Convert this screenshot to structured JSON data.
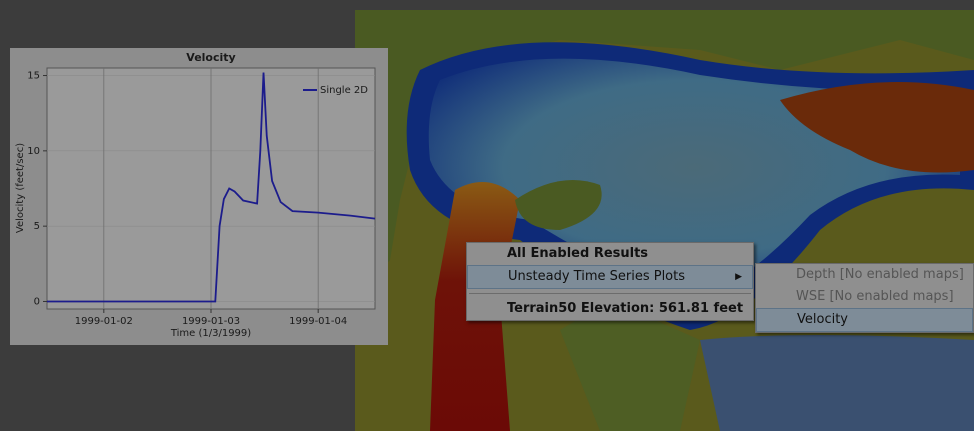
{
  "chart_data": {
    "type": "line",
    "title": "Velocity",
    "x_label": "Time (1/3/1999)",
    "y_label": "Velocity (feet/sec)",
    "x": [
      1.47,
      3.04,
      3.08,
      3.12,
      3.17,
      3.22,
      3.3,
      3.43,
      3.46,
      3.49,
      3.52,
      3.57,
      3.65,
      3.76,
      4.0,
      4.3,
      4.53
    ],
    "series": [
      {
        "name": "Single 2D",
        "color": "#1c1c8c",
        "values": [
          0,
          0,
          5,
          6.8,
          7.5,
          7.3,
          6.7,
          6.5,
          10,
          15.2,
          11,
          8,
          6.6,
          6.0,
          5.9,
          5.7,
          5.5
        ]
      }
    ],
    "xlim": [
      1.47,
      4.53
    ],
    "xticks": [
      {
        "value": 2,
        "label": "1999-01-02"
      },
      {
        "value": 3,
        "label": "1999-01-03"
      },
      {
        "value": 4,
        "label": "1999-01-04"
      }
    ],
    "ylim": [
      -0.5,
      15.5
    ],
    "yticks": [
      0,
      5,
      10,
      15
    ],
    "grid": true,
    "legend": "upper right"
  },
  "context_menu": {
    "items": [
      "All Enabled Results",
      "Unsteady Time Series Plots",
      "Terrain50 Elevation: 561.81 feet"
    ]
  },
  "submenu": {
    "items": [
      "Depth [No enabled maps]",
      "WSE [No enabled maps]",
      "Velocity"
    ]
  }
}
